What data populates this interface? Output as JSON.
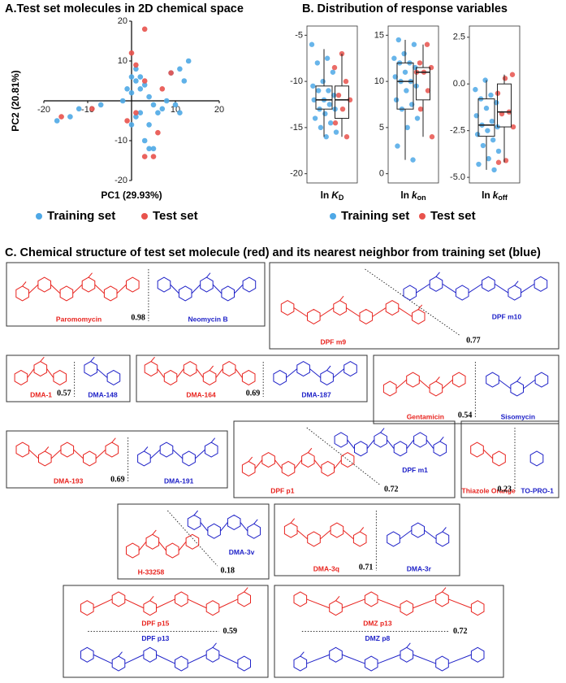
{
  "chart_data": [
    {
      "type": "scatter",
      "title": "A.Test set molecules in 2D chemical space",
      "xlabel": "PC1 (29.93%)",
      "ylabel": "PC2 (20.81%)",
      "xlim": [
        -20,
        20
      ],
      "ylim": [
        -20,
        20
      ],
      "xticks": [
        -20,
        -10,
        10,
        20
      ],
      "yticks": [
        -20,
        -10,
        10,
        20
      ],
      "series": [
        {
          "name": "Training set",
          "color": "#4ea8e6",
          "x": [
            -17,
            -14,
            -12,
            -7,
            -2,
            -1,
            0,
            0,
            1,
            1,
            2,
            2,
            3,
            4,
            5,
            6,
            8,
            10,
            11,
            9,
            11,
            13,
            12,
            0,
            1,
            3,
            4,
            5,
            4,
            7,
            2
          ],
          "y": [
            -5,
            -4,
            -2,
            -1,
            0,
            3,
            2,
            6,
            5,
            8,
            6,
            3,
            4,
            1,
            -1,
            -3,
            0,
            -1,
            -3,
            7,
            8,
            10,
            5,
            -6,
            -4,
            -10,
            -12,
            -12,
            -6,
            -2,
            -3
          ]
        },
        {
          "name": "Test set",
          "color": "#e8524c",
          "x": [
            -16,
            -9,
            0,
            1,
            3,
            3,
            6,
            3,
            5,
            7,
            9,
            1,
            -1
          ],
          "y": [
            -4,
            -2,
            12,
            9,
            5,
            18,
            -8,
            -14,
            -14,
            3,
            7,
            -3,
            -5
          ]
        }
      ]
    },
    {
      "type": "box",
      "title": "B. Distribution of response variables",
      "series": [
        {
          "name": "Training set",
          "color": "#4ea8e6"
        },
        {
          "name": "Test set",
          "color": "#e8524c"
        }
      ],
      "panels": [
        {
          "label": [
            "ln",
            "K",
            "D"
          ],
          "ylim": [
            -21,
            -4
          ],
          "yticks": [
            -5,
            -10,
            -15,
            -20
          ],
          "series": [
            {
              "values": [
                -6,
                -7.5,
                -8,
                -9,
                -10,
                -10.5,
                -11,
                -11,
                -11.5,
                -12,
                -12,
                -12.5,
                -13,
                -13,
                -13.5,
                -14,
                -14.5,
                -15,
                -15.5,
                -16
              ],
              "box": {
                "whislo": -16,
                "q1": -13,
                "med": -12,
                "q3": -10.5,
                "whishi": -6.5
              }
            },
            {
              "values": [
                -7,
                -8.5,
                -10,
                -11.5,
                -12,
                -13,
                -14.5,
                -16
              ],
              "box": {
                "whislo": -16,
                "q1": -14,
                "med": -12,
                "q3": -10.5,
                "whishi": -7
              }
            }
          ]
        },
        {
          "label": [
            "ln",
            "k",
            "on"
          ],
          "ylim": [
            -1,
            16
          ],
          "yticks": [
            15,
            10,
            5,
            0
          ],
          "series": [
            {
              "values": [
                14.5,
                14,
                13,
                12.5,
                12,
                12,
                11.5,
                11,
                10.5,
                10,
                10,
                9.5,
                9,
                8,
                7.5,
                7,
                6,
                5,
                3,
                1.5
              ],
              "box": {
                "whislo": 1.5,
                "q1": 7,
                "med": 10,
                "q3": 12,
                "whishi": 14.5
              }
            },
            {
              "values": [
                14,
                12,
                11.5,
                11,
                11,
                9,
                7,
                4
              ],
              "box": {
                "whislo": 4,
                "q1": 8,
                "med": 11,
                "q3": 11.5,
                "whishi": 14
              }
            }
          ]
        },
        {
          "label": [
            "ln",
            "k",
            "off"
          ],
          "ylim": [
            -5.3,
            3.1
          ],
          "yticks": [
            2.5,
            {
              "value": 0,
              "label": "0.0"
            },
            -2.5,
            {
              "value": -5,
              "label": "-5.0"
            }
          ],
          "series": [
            {
              "values": [
                0.2,
                -0.3,
                -0.6,
                -0.8,
                -1,
                -1.3,
                -1.7,
                -2,
                -2.2,
                -2.3,
                -2.5,
                -2.7,
                -3,
                -3.3,
                -3.6,
                -4,
                -4.3,
                -4.6
              ],
              "box": {
                "whislo": -4.6,
                "q1": -2.8,
                "med": -2.2,
                "q3": -0.8,
                "whishi": 0.2
              }
            },
            {
              "values": [
                0.5,
                0.3,
                -0.5,
                -1.5,
                -1.6,
                -2.3,
                -4.1,
                -4.2
              ],
              "box": {
                "whislo": -4.2,
                "q1": -2.3,
                "med": -1.5,
                "q3": 0,
                "whishi": 0.5
              }
            }
          ]
        }
      ]
    }
  ],
  "section_c": {
    "title": "C. Chemical structure of test set molecule (red) and its nearest neighbor from training set (blue)",
    "pairs": [
      {
        "test": "Paromomycin",
        "neighbor": "Neomycin B",
        "similarity": 0.98
      },
      {
        "test": "DPF m9",
        "neighbor": "DPF m10",
        "similarity": 0.77
      },
      {
        "test": "DMA-1",
        "neighbor": "DMA-148",
        "similarity": 0.57
      },
      {
        "test": "DMA-164",
        "neighbor": "DMA-187",
        "similarity": 0.69
      },
      {
        "test": "Gentamicin",
        "neighbor": "Sisomycin",
        "similarity": 0.54
      },
      {
        "test": "DMA-193",
        "neighbor": "DMA-191",
        "similarity": 0.69
      },
      {
        "test": "DPF p1",
        "neighbor": "DPF m1",
        "similarity": 0.72
      },
      {
        "test": "Thiazole Orange",
        "neighbor": "TO-PRO-1",
        "similarity": 0.23
      },
      {
        "test": "H-33258",
        "neighbor": "DMA-3v",
        "similarity": 0.18
      },
      {
        "test": "DMA-3q",
        "neighbor": "DMA-3r",
        "similarity": 0.71
      },
      {
        "test": "DPF p15",
        "neighbor": "DPF p13",
        "similarity": 0.59
      },
      {
        "test": "DMZ p13",
        "neighbor": "DMZ p8",
        "similarity": 0.72
      }
    ]
  }
}
